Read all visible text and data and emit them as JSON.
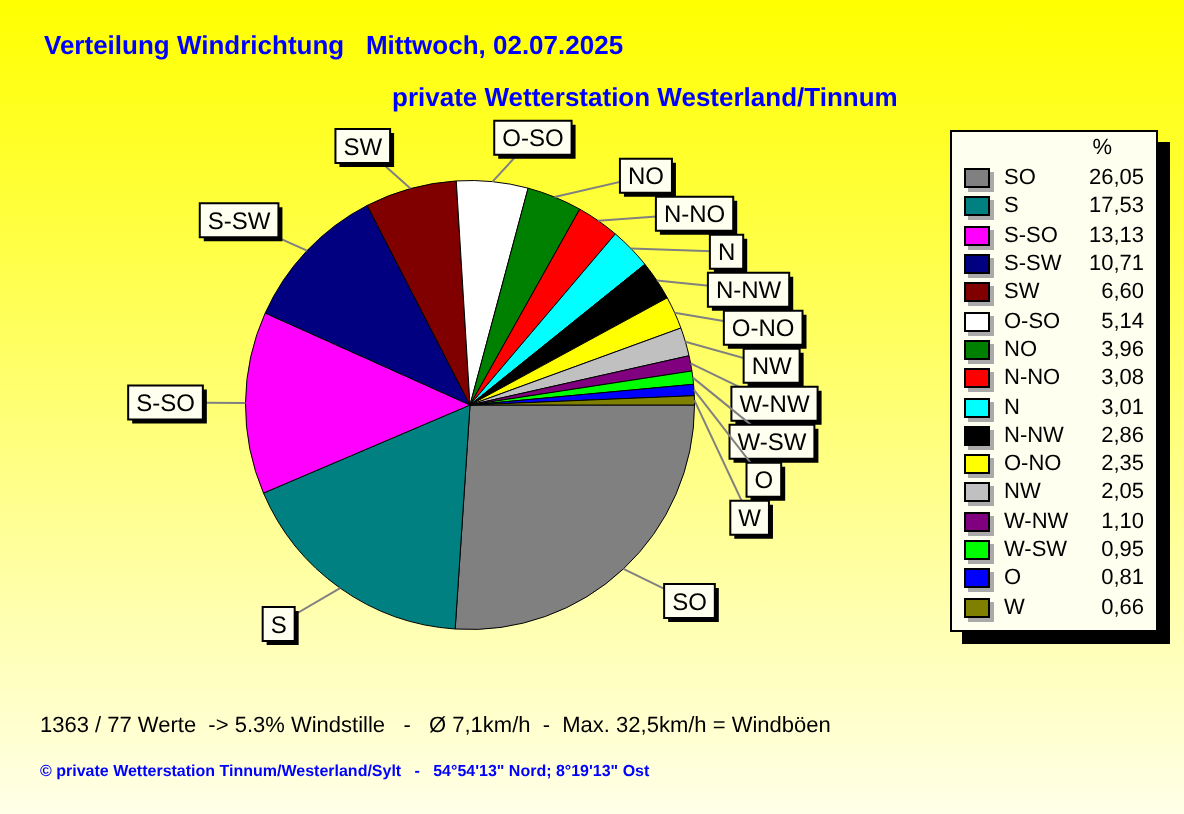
{
  "chart_data": {
    "type": "pie",
    "title": "Verteilung Windrichtung   Mittwoch, 02.07.2025",
    "subtitle": "private Wetterstation Westerland/Tinnum",
    "legend_title": "%",
    "categories": [
      "SO",
      "S",
      "S-SO",
      "S-SW",
      "SW",
      "O-SO",
      "NO",
      "N-NO",
      "N",
      "N-NW",
      "O-NO",
      "NW",
      "W-NW",
      "W-SW",
      "O",
      "W"
    ],
    "values": [
      26.05,
      17.53,
      13.13,
      10.71,
      6.6,
      5.14,
      3.96,
      3.08,
      3.01,
      2.86,
      2.35,
      2.05,
      1.1,
      0.95,
      0.81,
      0.66
    ],
    "value_labels": [
      "26,05",
      "17,53",
      "13,13",
      "10,71",
      "6,60",
      "5,14",
      "3,96",
      "3,08",
      "3,01",
      "2,86",
      "2,35",
      "2,05",
      "1,10",
      "0,95",
      "0,81",
      "0,66"
    ],
    "colors": [
      "#808080",
      "#008080",
      "#ff00ff",
      "#000080",
      "#800000",
      "#ffffff",
      "#008000",
      "#ff0000",
      "#00ffff",
      "#000000",
      "#ffff00",
      "#c0c0c0",
      "#800080",
      "#00ff00",
      "#0000ff",
      "#808000"
    ],
    "legend": "right",
    "annotations": [
      "1363 / 77 Werte  -> 5.3% Windstille   -   Ø 7,1km/h  -  Max. 32,5km/h = Windböen",
      "© private Wetterstation Tinnum/Westerland/Sylt   -   54°54'13\" Nord; 8°19'13\" Ost"
    ]
  }
}
